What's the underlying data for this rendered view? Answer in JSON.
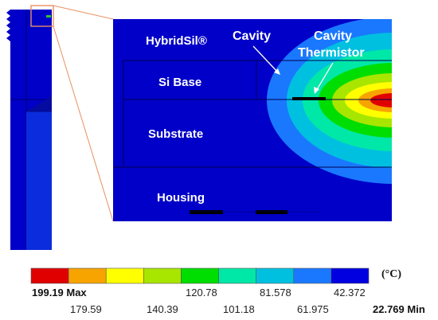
{
  "labels": {
    "hybridsil": "HybridSil®",
    "si_base": "Si Base",
    "substrate": "Substrate",
    "housing": "Housing",
    "cavity": "Cavity",
    "cavity_thermistor_line1": "Cavity",
    "cavity_thermistor_line2": "Thermistor"
  },
  "legend": {
    "unit": "(°C)",
    "colors": [
      "#e00000",
      "#f7a400",
      "#ffff00",
      "#a8e600",
      "#00dd00",
      "#00e8a8",
      "#00c0e0",
      "#1a78ff",
      "#0000e0"
    ],
    "top_labels": [
      "199.19 Max",
      "120.78",
      "81.578",
      "42.372"
    ],
    "bottom_labels": [
      "179.59",
      "140.39",
      "101.18",
      "61.975",
      "22.769 Min"
    ]
  }
}
